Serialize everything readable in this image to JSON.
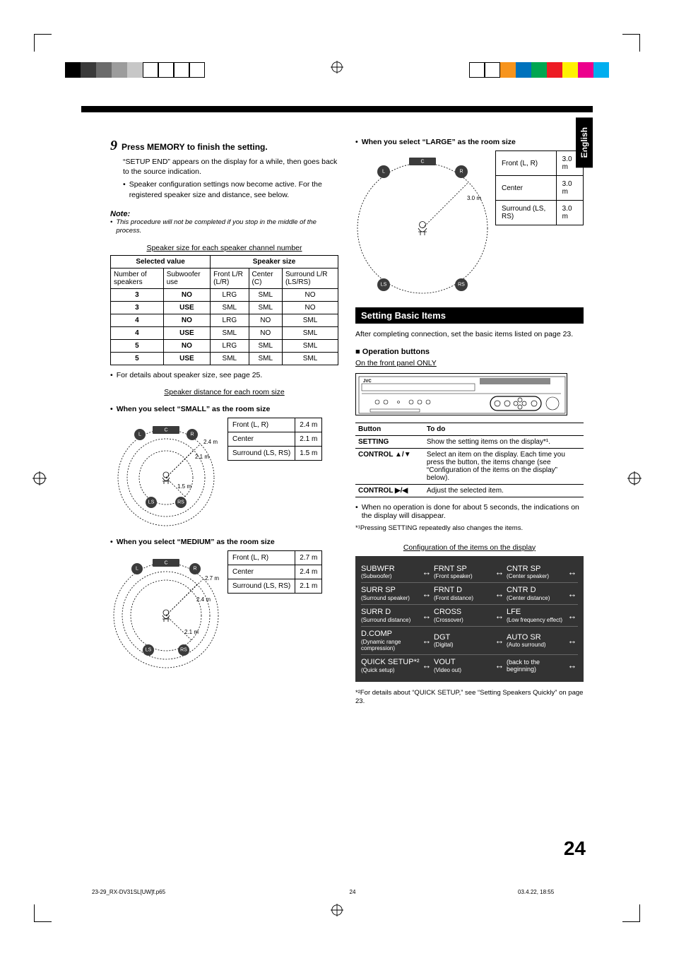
{
  "marks": {
    "left_colors": [
      "#000000",
      "#3a3a3a",
      "#6b6b6b",
      "#9c9c9c",
      "#c7c7c7",
      "#ffffff",
      "#ffffff",
      "#ffffff",
      "#ffffff"
    ],
    "right_colors": [
      "#00aeef",
      "#ec008c",
      "#fff200",
      "#ed1c24",
      "#00a651",
      "#0072bc",
      "#f7941d",
      "#ffffff",
      "#ffffff"
    ]
  },
  "language_tab": "English",
  "step": {
    "num": "9",
    "title": "Press MEMORY to finish the setting.",
    "line1": "“SETUP END” appears on the display for a while, then goes back to the source indication.",
    "bullet": "Speaker configuration settings now become active. For the registered speaker size and distance, see below."
  },
  "note": {
    "head": "Note:",
    "body": "This procedure will not be completed if you stop in the middle of the process."
  },
  "spksize": {
    "caption": "Speaker size for each speaker channel number",
    "headers": {
      "sel": "Selected value",
      "size": "Speaker size",
      "num": "Number of speakers",
      "sub": "Subwoofer use",
      "fr": "Front L/R (L/R)",
      "ce": "Center (C)",
      "su": "Surround L/R (LS/RS)"
    },
    "rows": [
      {
        "n": "3",
        "sub": "NO",
        "fr": "LRG",
        "ce": "SML",
        "su": "NO"
      },
      {
        "n": "3",
        "sub": "USE",
        "fr": "SML",
        "ce": "SML",
        "su": "NO"
      },
      {
        "n": "4",
        "sub": "NO",
        "fr": "LRG",
        "ce": "NO",
        "su": "SML"
      },
      {
        "n": "4",
        "sub": "USE",
        "fr": "SML",
        "ce": "NO",
        "su": "SML"
      },
      {
        "n": "5",
        "sub": "NO",
        "fr": "LRG",
        "ce": "SML",
        "su": "SML"
      },
      {
        "n": "5",
        "sub": "USE",
        "fr": "SML",
        "ce": "SML",
        "su": "SML"
      }
    ],
    "footnote": "For details about speaker size, see page 25."
  },
  "dist_caption": "Speaker distance for each room size",
  "rooms": {
    "small": {
      "head": "When you select “SMALL” as the room size",
      "front": "2.4 m",
      "center": "2.1 m",
      "surr": "1.5 m",
      "d_outer": "2.4 m",
      "d_mid": "2.1 m",
      "d_inner": "1.5 m"
    },
    "medium": {
      "head": "When you select “MEDIUM” as the room size",
      "front": "2.7 m",
      "center": "2.4 m",
      "surr": "2.1 m",
      "d_outer": "2.7 m",
      "d_mid": "2.4 m",
      "d_inner": "2.1 m"
    },
    "large": {
      "head": "When you select “LARGE” as the room size",
      "front": "3.0 m",
      "center": "3.0 m",
      "surr": "3.0 m",
      "d_outer": "3.0 m"
    }
  },
  "room_labels": {
    "front": "Front (L, R)",
    "center": "Center",
    "surr": "Surround (LS, RS)"
  },
  "spk_labels": {
    "L": "L",
    "C": "C",
    "R": "R",
    "LS": "LS",
    "RS": "RS"
  },
  "section": {
    "title": "Setting Basic Items",
    "intro": "After completing connection, set the basic items listed on page 23.",
    "op_head": "Operation buttons",
    "op_sub": "On the front panel ONLY"
  },
  "buttons_tbl": {
    "h1": "Button",
    "h2": "To do",
    "rows": [
      {
        "b": "SETTING",
        "d": "Show the setting items on the display*¹."
      },
      {
        "b": "CONTROL ▲/▼",
        "d": "Select an item on the display. Each time you press the button, the items change (see “Configuration of the items on the display” below)."
      },
      {
        "b": "CONTROL ▶/◀",
        "d": "Adjust the selected item."
      }
    ],
    "foot1": "When no operation is done for about 5 seconds, the indications on the display will disappear.",
    "foot2": "*¹Pressing SETTING repeatedly also changes the items."
  },
  "config": {
    "caption": "Configuration of the items on the display",
    "rows": [
      [
        {
          "m": "SUBWFR",
          "s": "(Subwoofer)"
        },
        {
          "m": "FRNT SP",
          "s": "(Front speaker)"
        },
        {
          "m": "CNTR SP",
          "s": "(Center speaker)"
        }
      ],
      [
        {
          "m": "SURR SP",
          "s": "(Surround speaker)"
        },
        {
          "m": "FRNT D",
          "s": "(Front distance)"
        },
        {
          "m": "CNTR D",
          "s": "(Center distance)"
        }
      ],
      [
        {
          "m": "SURR D",
          "s": "(Surround distance)"
        },
        {
          "m": "CROSS",
          "s": "(Crossover)"
        },
        {
          "m": "LFE",
          "s": "(Low frequency effect)"
        }
      ],
      [
        {
          "m": "D.COMP",
          "s": "(Dynamic range compression)"
        },
        {
          "m": "DGT",
          "s": "(Digital)"
        },
        {
          "m": "AUTO SR",
          "s": "(Auto surround)"
        }
      ],
      [
        {
          "m": "QUICK SETUP*²",
          "s": "(Quick setup)"
        },
        {
          "m": "VOUT",
          "s": "(Video out)"
        },
        {
          "m": "(back to the beginning)",
          "s": "",
          "plain": true
        }
      ]
    ],
    "footnote": "*²For details about “QUICK SETUP,” see “Setting Speakers Quickly” on page 23."
  },
  "page_num": "24",
  "footer": {
    "file": "23-29_RX-DV31SL[UW]f.p65",
    "page": "24",
    "date": "03.4.22, 18:55"
  },
  "panel_brand": "JVC"
}
